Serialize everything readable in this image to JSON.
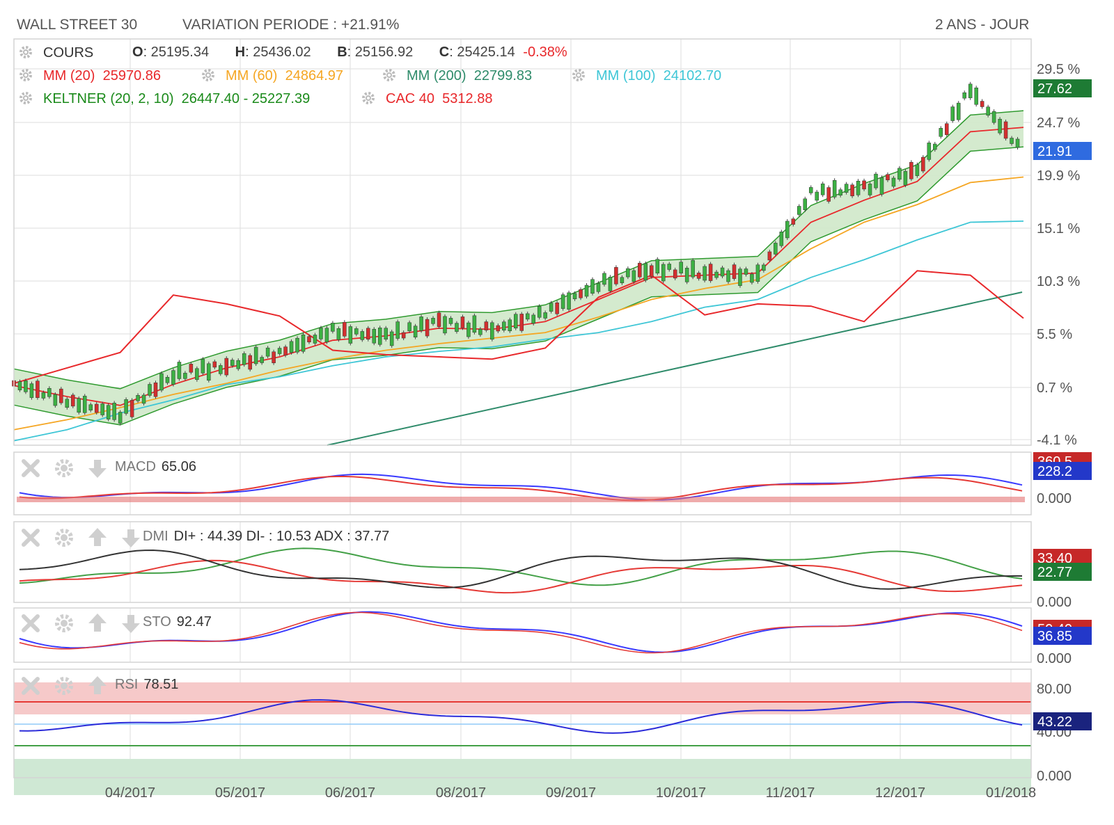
{
  "header": {
    "instrument": "WALL STREET 30",
    "variation": "VARIATION PERIODE : +21.91%",
    "period": "2 ANS - JOUR"
  },
  "legend": {
    "cours": {
      "label": "COURS",
      "o_key": "O",
      "o": ": 25195.34",
      "h_key": "H",
      "h": ": 25436.02",
      "b_key": "B",
      "b": ": 25156.92",
      "c_key": "C",
      "c": ": 25425.14",
      "change": "-0.38%"
    },
    "mm20": {
      "label": "MM (20)",
      "value": "25970.86",
      "color": "#e8282b"
    },
    "mm60": {
      "label": "MM (60)",
      "value": "24864.97",
      "color": "#f5a623"
    },
    "mm200": {
      "label": "MM (200)",
      "value": "22799.83",
      "color": "#2e8b6a"
    },
    "mm100": {
      "label": "MM (100)",
      "value": "24102.70",
      "color": "#3ec6d6"
    },
    "keltner": {
      "label": "KELTNER (20, 2, 10)",
      "value": "26447.40 - 25227.39",
      "color": "#1a8a1a"
    },
    "cac40": {
      "label": "CAC 40",
      "value": "5312.88",
      "color": "#e8282b"
    }
  },
  "panels": {
    "macd": {
      "name": "MACD",
      "value": "65.06",
      "badge_top": "360.5",
      "badge_main": "228.2",
      "zero": "0.000"
    },
    "dmi": {
      "name": "DMI",
      "value": "DI+ : 44.39 DI- : 10.53 ADX : 37.77",
      "badge_top": "33.40",
      "badge_main": "22.77",
      "zero": "0.000"
    },
    "sto": {
      "name": "STO",
      "value": "92.47",
      "badge_top": "50.40",
      "badge_main": "36.85",
      "zero": "0.000"
    },
    "rsi": {
      "name": "RSI",
      "value": "78.51",
      "level_high": "80.00",
      "badge_main": "43.22",
      "level_mid": "40.00",
      "zero": "0.000"
    }
  },
  "chart_data": {
    "type": "line",
    "title": "WALL STREET 30",
    "x_ticks": [
      "04/2017",
      "05/2017",
      "06/2017",
      "08/2017",
      "09/2017",
      "10/2017",
      "11/2017",
      "12/2017",
      "01/2018"
    ],
    "y_ticks_pct": [
      "29.5 %",
      "24.7 %",
      "19.9 %",
      "15.1 %",
      "10.3 %",
      "5.5 %",
      "0.7 %",
      "-4.1 %"
    ],
    "badges": {
      "cac_badge": "27.62",
      "last_badge": "21.91"
    },
    "x": [
      0,
      4,
      8,
      12,
      16,
      20,
      24,
      28,
      32,
      36,
      40,
      44,
      48,
      52,
      56,
      60,
      64,
      68,
      72,
      76,
      80,
      84,
      88,
      92,
      96,
      100
    ],
    "series": [
      {
        "name": "COURS",
        "values": [
          1.0,
          -0.6,
          -1.8,
          1.8,
          2.6,
          3.8,
          5.8,
          5.2,
          6.6,
          5.8,
          7.4,
          10.0,
          11.4,
          11.0,
          10.8,
          18.2,
          18.7,
          20.2,
          27.6,
          21.9,
          null,
          null,
          null,
          null,
          null,
          null
        ]
      },
      {
        "name": "MM (20)",
        "values": [
          0.8,
          -0.2,
          -1.0,
          0.9,
          2.4,
          3.4,
          4.9,
          5.3,
          6.0,
          5.9,
          6.6,
          8.6,
          10.6,
          10.8,
          11.0,
          15.6,
          17.6,
          19.3,
          23.8,
          24.2,
          null,
          null,
          null,
          null,
          null,
          null
        ]
      },
      {
        "name": "MM (60)",
        "values": [
          -3.2,
          -2.3,
          -1.2,
          0.0,
          1.0,
          2.2,
          3.2,
          4.0,
          4.6,
          5.1,
          5.6,
          7.0,
          8.6,
          9.6,
          10.4,
          13.2,
          15.6,
          17.2,
          19.2,
          19.7,
          null,
          null,
          null,
          null,
          null,
          null
        ]
      },
      {
        "name": "MM (100)",
        "values": [
          -4.2,
          -3.2,
          -1.7,
          -0.5,
          0.9,
          1.6,
          2.6,
          3.4,
          3.9,
          4.3,
          5.0,
          5.6,
          6.6,
          7.9,
          8.6,
          10.6,
          12.2,
          14.0,
          15.6,
          15.7,
          null,
          null,
          null,
          null,
          null,
          null
        ]
      },
      {
        "name": "CAC 40",
        "values": [
          1.0,
          2.4,
          3.8,
          9.0,
          8.2,
          7.1,
          4.0,
          3.6,
          3.4,
          3.2,
          4.2,
          8.8,
          10.8,
          7.2,
          8.2,
          8.0,
          6.6,
          11.2,
          10.8,
          6.9,
          null,
          null,
          null,
          null,
          null,
          null
        ]
      }
    ]
  }
}
